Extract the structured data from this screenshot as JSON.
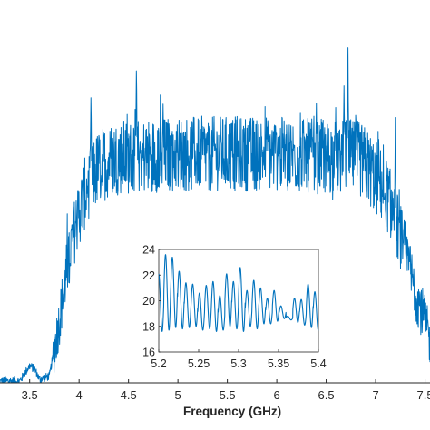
{
  "chart_data": [
    {
      "type": "line",
      "title": "",
      "xlabel": "Frequency (GHz)",
      "ylabel": "",
      "xlim": [
        3.2,
        7.55
      ],
      "ylim": [
        0,
        1
      ],
      "xticks": [
        3.5,
        4,
        4.5,
        5,
        5.5,
        6,
        6.5,
        7,
        7.5
      ],
      "xtick_labels": [
        "3.5",
        "4",
        "4.5",
        "5",
        "5.5",
        "6",
        "6.5",
        "7",
        "7.5"
      ],
      "grid": false,
      "series_color": "#0072BD",
      "envelope": {
        "x": [
          3.2,
          3.4,
          3.5,
          3.55,
          3.6,
          3.7,
          3.8,
          3.9,
          4.0,
          4.1,
          4.2,
          4.3,
          4.4,
          4.5,
          5.0,
          5.5,
          6.0,
          6.5,
          6.8,
          6.9,
          7.0,
          7.1,
          7.2,
          7.3,
          7.4,
          7.5,
          7.55
        ],
        "y": [
          0.005,
          0.005,
          0.05,
          0.04,
          0.01,
          0.02,
          0.18,
          0.38,
          0.5,
          0.59,
          0.63,
          0.65,
          0.66,
          0.66,
          0.67,
          0.67,
          0.67,
          0.66,
          0.66,
          0.64,
          0.6,
          0.56,
          0.48,
          0.38,
          0.27,
          0.18,
          0.12
        ]
      },
      "spikes": [
        {
          "x": 4.12,
          "y": 0.88
        },
        {
          "x": 4.58,
          "y": 0.97
        },
        {
          "x": 4.85,
          "y": 0.82
        },
        {
          "x": 5.3,
          "y": 0.73
        },
        {
          "x": 5.9,
          "y": 0.74
        },
        {
          "x": 6.4,
          "y": 0.82
        },
        {
          "x": 6.68,
          "y": 0.87
        },
        {
          "x": 6.72,
          "y": 1.0
        },
        {
          "x": 7.2,
          "y": 0.88
        }
      ]
    },
    {
      "type": "line",
      "title": "",
      "xlabel": "",
      "ylabel": "",
      "xlim": [
        5.2,
        5.4
      ],
      "ylim": [
        16,
        24
      ],
      "xticks": [
        5.2,
        5.25,
        5.3,
        5.35,
        5.4
      ],
      "xtick_labels": [
        "5.2",
        "5.25",
        "5.3",
        "5.35",
        "5.4"
      ],
      "yticks": [
        16,
        18,
        20,
        22,
        24
      ],
      "ytick_labels": [
        "16",
        "18",
        "20",
        "22",
        "24"
      ],
      "grid": false,
      "series_color": "#0072BD",
      "period_ghz": 0.0085,
      "peaks": [
        22.1,
        23.6,
        23.4,
        22.3,
        21.4,
        21.3,
        20.6,
        21.2,
        21.5,
        20.4,
        22.1,
        21.5,
        22.6,
        20.8,
        21.6,
        21.0,
        20.2,
        20.8,
        19.6,
        18.8,
        20.2,
        20.1,
        21.3,
        20.7,
        21.8
      ],
      "troughs": [
        17.6,
        17.7,
        17.9,
        17.8,
        17.9,
        18.0,
        17.7,
        17.8,
        17.6,
        17.7,
        18.0,
        17.8,
        17.6,
        18.0,
        17.8,
        18.2,
        18.2,
        18.4,
        18.6,
        18.5,
        18.3,
        18.1,
        17.9,
        17.7,
        17.6
      ]
    }
  ]
}
